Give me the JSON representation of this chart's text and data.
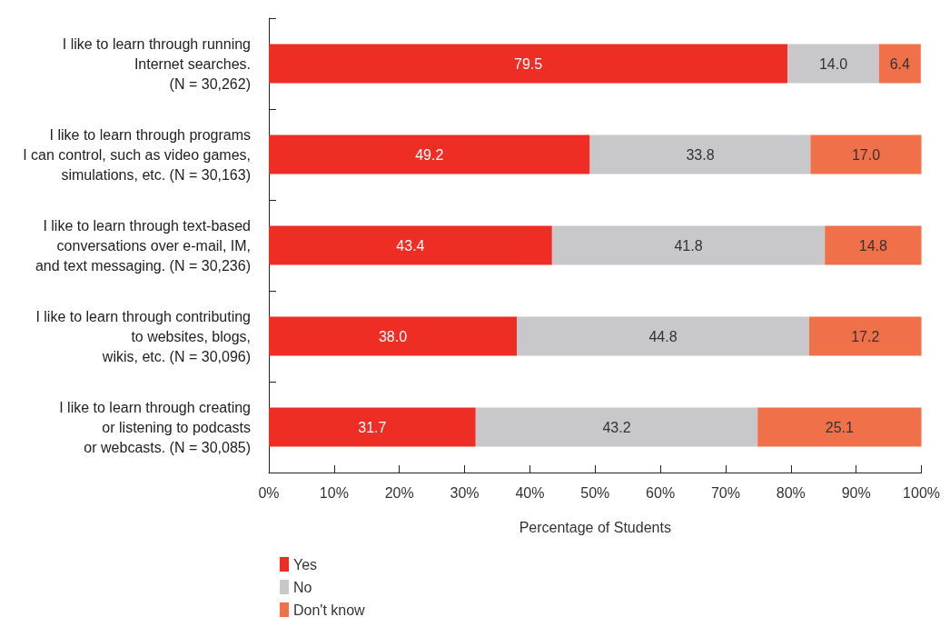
{
  "chart_data": {
    "type": "bar",
    "orientation": "horizontal",
    "stacked": true,
    "grid": false,
    "legend": "bottom left",
    "xlabel": "Percentage of Students",
    "categories": [
      "I like to learn through running\nInternet searches.\n(N = 30,262)",
      "I like to learn through programs\nI can control, such as video games,\nsimulations, etc. (N = 30,163)",
      "I like to learn through text-based\nconversations over e-mail, IM,\nand text messaging. (N = 30,236)",
      "I like to learn through contributing\nto websites, blogs,\nwikis, etc. (N = 30,096)",
      "I like to learn through creating\nor listening to podcasts\nor webcasts. (N = 30,085)"
    ],
    "series": [
      {
        "name": "Yes",
        "color": "#ee2e24",
        "values": [
          79.5,
          49.2,
          43.4,
          38.0,
          31.7
        ],
        "value_labels": [
          "79.5",
          "49.2",
          "43.4",
          "38.0",
          "31.7"
        ]
      },
      {
        "name": "No",
        "color": "#c8c8ca",
        "values": [
          14.0,
          33.8,
          41.8,
          44.8,
          43.2
        ],
        "value_labels": [
          "14.0",
          "33.8",
          "41.8",
          "44.8",
          "43.2"
        ]
      },
      {
        "name": "Don't know",
        "color": "#f0704a",
        "values": [
          6.4,
          17.0,
          14.8,
          17.2,
          25.1
        ],
        "value_labels": [
          "6.4",
          "17.0",
          "14.8",
          "17.2",
          "25.1"
        ]
      }
    ],
    "xlim": [
      0,
      100
    ],
    "xticks": [
      {
        "value": 0,
        "label": "0%"
      },
      {
        "value": 10,
        "label": "10%"
      },
      {
        "value": 20,
        "label": "20%"
      },
      {
        "value": 30,
        "label": "30%"
      },
      {
        "value": 40,
        "label": "40%"
      },
      {
        "value": 50,
        "label": "50%"
      },
      {
        "value": 60,
        "label": "60%"
      },
      {
        "value": 70,
        "label": "70%"
      },
      {
        "value": 80,
        "label": "80%"
      },
      {
        "value": 90,
        "label": "90%"
      },
      {
        "value": 100,
        "label": "100%"
      }
    ]
  }
}
